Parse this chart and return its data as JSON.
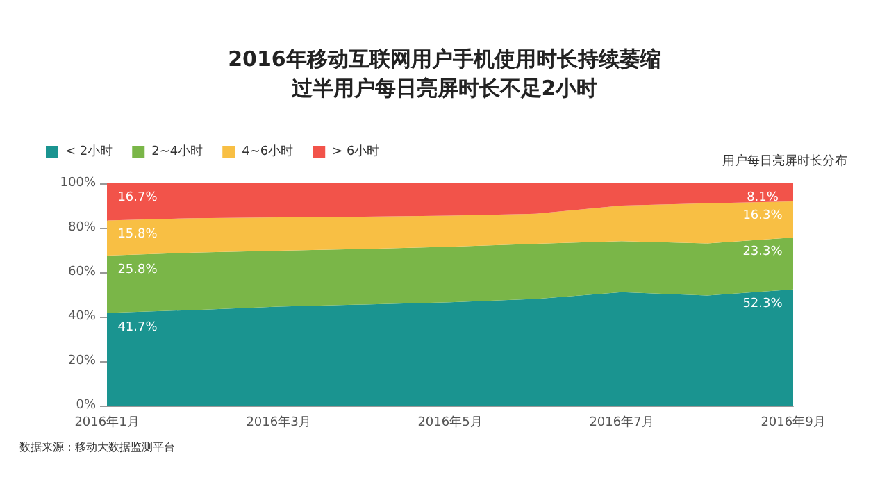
{
  "chart_data": {
    "type": "area",
    "title": "2016年移动互联网用户手机使用时长持续萎缩",
    "subtitle": "过半用户每日亮屏时长不足2小时",
    "stacked": true,
    "legend": "top left",
    "grid": false,
    "categories": [
      "2016年1月",
      null,
      "2016年3月",
      null,
      "2016年5月",
      null,
      "2016年7月",
      null,
      "2016年9月"
    ],
    "ylim": [
      0,
      100
    ],
    "yticks": [
      {
        "value": 0,
        "label": "0%"
      },
      {
        "value": 20,
        "label": "20%"
      },
      {
        "value": 40,
        "label": "40%"
      },
      {
        "value": 60,
        "label": "60%"
      },
      {
        "value": 80,
        "label": "80%"
      },
      {
        "value": 100,
        "label": "100%"
      }
    ],
    "series": [
      {
        "name": "< 2小时",
        "color": "#1a9490",
        "values": [
          41.7,
          43.0,
          44.5,
          45.5,
          46.5,
          48.0,
          51.0,
          49.5,
          52.3
        ],
        "value_labels": [
          "41.7%",
          null,
          null,
          null,
          null,
          null,
          null,
          null,
          "52.3%"
        ]
      },
      {
        "name": "2~4小时",
        "color": "#7ab648",
        "values": [
          25.8,
          25.8,
          25.2,
          25.0,
          25.0,
          24.8,
          23.0,
          23.5,
          23.3
        ],
        "value_labels": [
          "25.8%",
          null,
          null,
          null,
          null,
          null,
          null,
          null,
          "23.3%"
        ]
      },
      {
        "name": "4~6小时",
        "color": "#f8bf44",
        "values": [
          15.8,
          15.5,
          15.0,
          14.5,
          14.0,
          13.5,
          16.0,
          18.0,
          16.3
        ],
        "value_labels": [
          "15.8%",
          null,
          null,
          null,
          null,
          null,
          null,
          null,
          "16.3%"
        ]
      },
      {
        "name": "> 6小时",
        "color": "#f2534a",
        "values": [
          16.7,
          15.7,
          15.3,
          15.0,
          14.5,
          13.7,
          10.0,
          9.0,
          8.1
        ],
        "value_labels": [
          "16.7%",
          null,
          null,
          null,
          null,
          null,
          null,
          null,
          "8.1%"
        ]
      }
    ],
    "annotations": [
      "用户每日亮屏时长分布",
      "数据来源：移动大数据监测平台"
    ]
  }
}
